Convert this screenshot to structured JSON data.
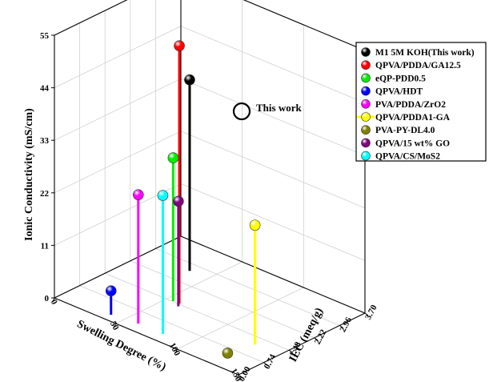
{
  "chart_data": {
    "type": "scatter3d",
    "zlabel": "Ionic Conductivity (mS/cm)",
    "xlabel": "Swelling Degree (%)",
    "ylabel": "IEC (meq/g)",
    "z_ticks": [
      "0",
      "11",
      "22",
      "33",
      "44",
      "55"
    ],
    "x_ticks": [
      "0",
      "50",
      "100",
      "150"
    ],
    "y_ticks": [
      "0.00",
      "0.74",
      "1.48",
      "2.22",
      "2.96",
      "3.70"
    ],
    "zlim": [
      0,
      55
    ],
    "xlim": [
      0,
      150
    ],
    "ylim": [
      0,
      3.7
    ],
    "annotation": "This work",
    "series": [
      {
        "name": "M1 5M KOH(This work)",
        "color": "#000000",
        "swelling": 35,
        "iec": 2.7,
        "conductivity": 40
      },
      {
        "name": "QPVA/PDDA/GA12.5",
        "color": "#ff0000",
        "swelling": 60,
        "iec": 1.5,
        "conductivity": 54
      },
      {
        "name": "eQP-PDD0.5",
        "color": "#00ee00",
        "swelling": 55,
        "iec": 1.5,
        "conductivity": 30
      },
      {
        "name": "QPVA/HDT",
        "color": "#0000ff",
        "swelling": 40,
        "iec": 0.22,
        "conductivity": 5
      },
      {
        "name": "PVA/PDDA/ZrO2",
        "color": "#ff00ff",
        "swelling": 60,
        "iec": 0.3,
        "conductivity": 27
      },
      {
        "name": "QPVA/PDDA1-GA",
        "color": "#ffff00",
        "swelling": 130,
        "iec": 1.2,
        "conductivity": 25
      },
      {
        "name": "PVA-PY-DL4.0",
        "color": "#808000",
        "swelling": 130,
        "iec": 0.4,
        "conductivity": 1
      },
      {
        "name": "QPVA/15 wt% GO",
        "color": "#800080",
        "swelling": 62,
        "iec": 1.4,
        "conductivity": 22
      },
      {
        "name": "QPVA/CS/MoS2",
        "color": "#00ffff",
        "swelling": 80,
        "iec": 0.3,
        "conductivity": 29
      }
    ]
  }
}
